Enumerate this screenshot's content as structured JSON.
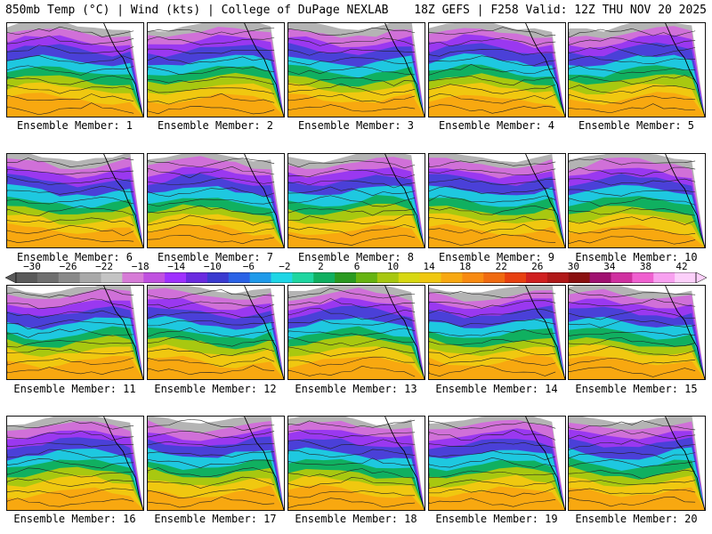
{
  "header": {
    "left": "850mb Temp (°C) | Wind (kts) | College of DuPage NEXLAB",
    "right": "18Z GEFS | F258 Valid: 12Z THU NOV 20 2025"
  },
  "members": [
    "Ensemble Member: 1",
    "Ensemble Member: 2",
    "Ensemble Member: 3",
    "Ensemble Member: 4",
    "Ensemble Member: 5",
    "Ensemble Member: 6",
    "Ensemble Member: 7",
    "Ensemble Member: 8",
    "Ensemble Member: 9",
    "Ensemble Member: 10",
    "Ensemble Member: 11",
    "Ensemble Member: 12",
    "Ensemble Member: 13",
    "Ensemble Member: 14",
    "Ensemble Member: 15",
    "Ensemble Member: 16",
    "Ensemble Member: 17",
    "Ensemble Member: 18",
    "Ensemble Member: 19",
    "Ensemble Member: 20"
  ],
  "colorbar": {
    "labels": [
      "−30",
      "−26",
      "−22",
      "−18",
      "−14",
      "−10",
      "−6",
      "−2",
      "2",
      "6",
      "10",
      "14",
      "18",
      "22",
      "26",
      "30",
      "34",
      "38",
      "42"
    ],
    "colors": [
      "#5a5a5a",
      "#6e6e6e",
      "#8a8a8a",
      "#a8a8a8",
      "#c4c4c4",
      "#d77bd7",
      "#c050e0",
      "#9f30ff",
      "#6a2ae0",
      "#3a3ad0",
      "#2a62e6",
      "#1e9aea",
      "#1ed6e6",
      "#1ed6a0",
      "#10b060",
      "#2a9a20",
      "#66b410",
      "#a8c810",
      "#d8d810",
      "#f0c810",
      "#f8a810",
      "#f88a10",
      "#f06a10",
      "#e84010",
      "#d02020",
      "#b01818",
      "#8a1010",
      "#a01070",
      "#d030a0",
      "#f060d0",
      "#f8a0f0",
      "#fcd0fa"
    ]
  }
}
